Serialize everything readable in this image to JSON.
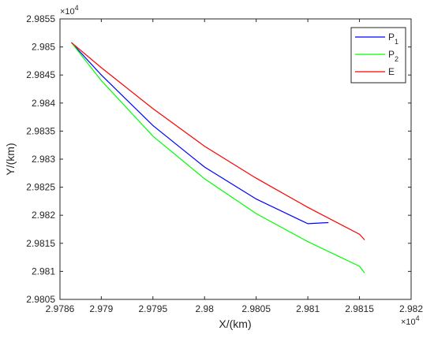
{
  "chart_data": {
    "type": "line",
    "xlabel": "X/(km)",
    "ylabel": "Y/(km)",
    "x_exponent": "× 10^4",
    "y_exponent": "× 10^4",
    "xlim": [
      29786,
      29820
    ],
    "ylim": [
      29805,
      29855
    ],
    "xticks": [
      29786,
      29790,
      29795,
      29800,
      29805,
      29810,
      29815,
      29820
    ],
    "xtick_labels": [
      "2.9786",
      "2.979",
      "2.9795",
      "2.98",
      "2.9805",
      "2.981",
      "2.9815",
      "2.982"
    ],
    "yticks": [
      29805,
      29810,
      29815,
      29820,
      29825,
      29830,
      29835,
      29840,
      29845,
      29850,
      29855
    ],
    "ytick_labels": [
      "2.9805",
      "2.981",
      "2.9815",
      "2.982",
      "2.9825",
      "2.983",
      "2.9835",
      "2.984",
      "2.9845",
      "2.985",
      "2.9855"
    ],
    "grid": false,
    "legend_position": "top-right",
    "series": [
      {
        "name": "P1",
        "name_main": "P",
        "name_sub": "1",
        "color": "#0000ff",
        "x": [
          29787.1,
          29790,
          29795,
          29800,
          29805,
          29810,
          29812
        ],
        "y": [
          29850.8,
          29845.0,
          29836.0,
          29828.6,
          29822.9,
          29818.5,
          29818.7
        ]
      },
      {
        "name": "P2",
        "name_main": "P",
        "name_sub": "2",
        "color": "#00ff00",
        "x": [
          29787.1,
          29790,
          29795,
          29800,
          29805,
          29810,
          29815,
          29815.5
        ],
        "y": [
          29850.8,
          29844.0,
          29834.1,
          29826.5,
          29820.3,
          29815.3,
          29810.9,
          29809.7
        ]
      },
      {
        "name": "E",
        "name_main": "E",
        "name_sub": "",
        "color": "#ff0000",
        "x": [
          29787.1,
          29790,
          29795,
          29800,
          29805,
          29810,
          29815,
          29815.5
        ],
        "y": [
          29850.8,
          29846.3,
          29839.0,
          29832.3,
          29826.6,
          29821.4,
          29816.6,
          29815.6
        ]
      }
    ]
  }
}
